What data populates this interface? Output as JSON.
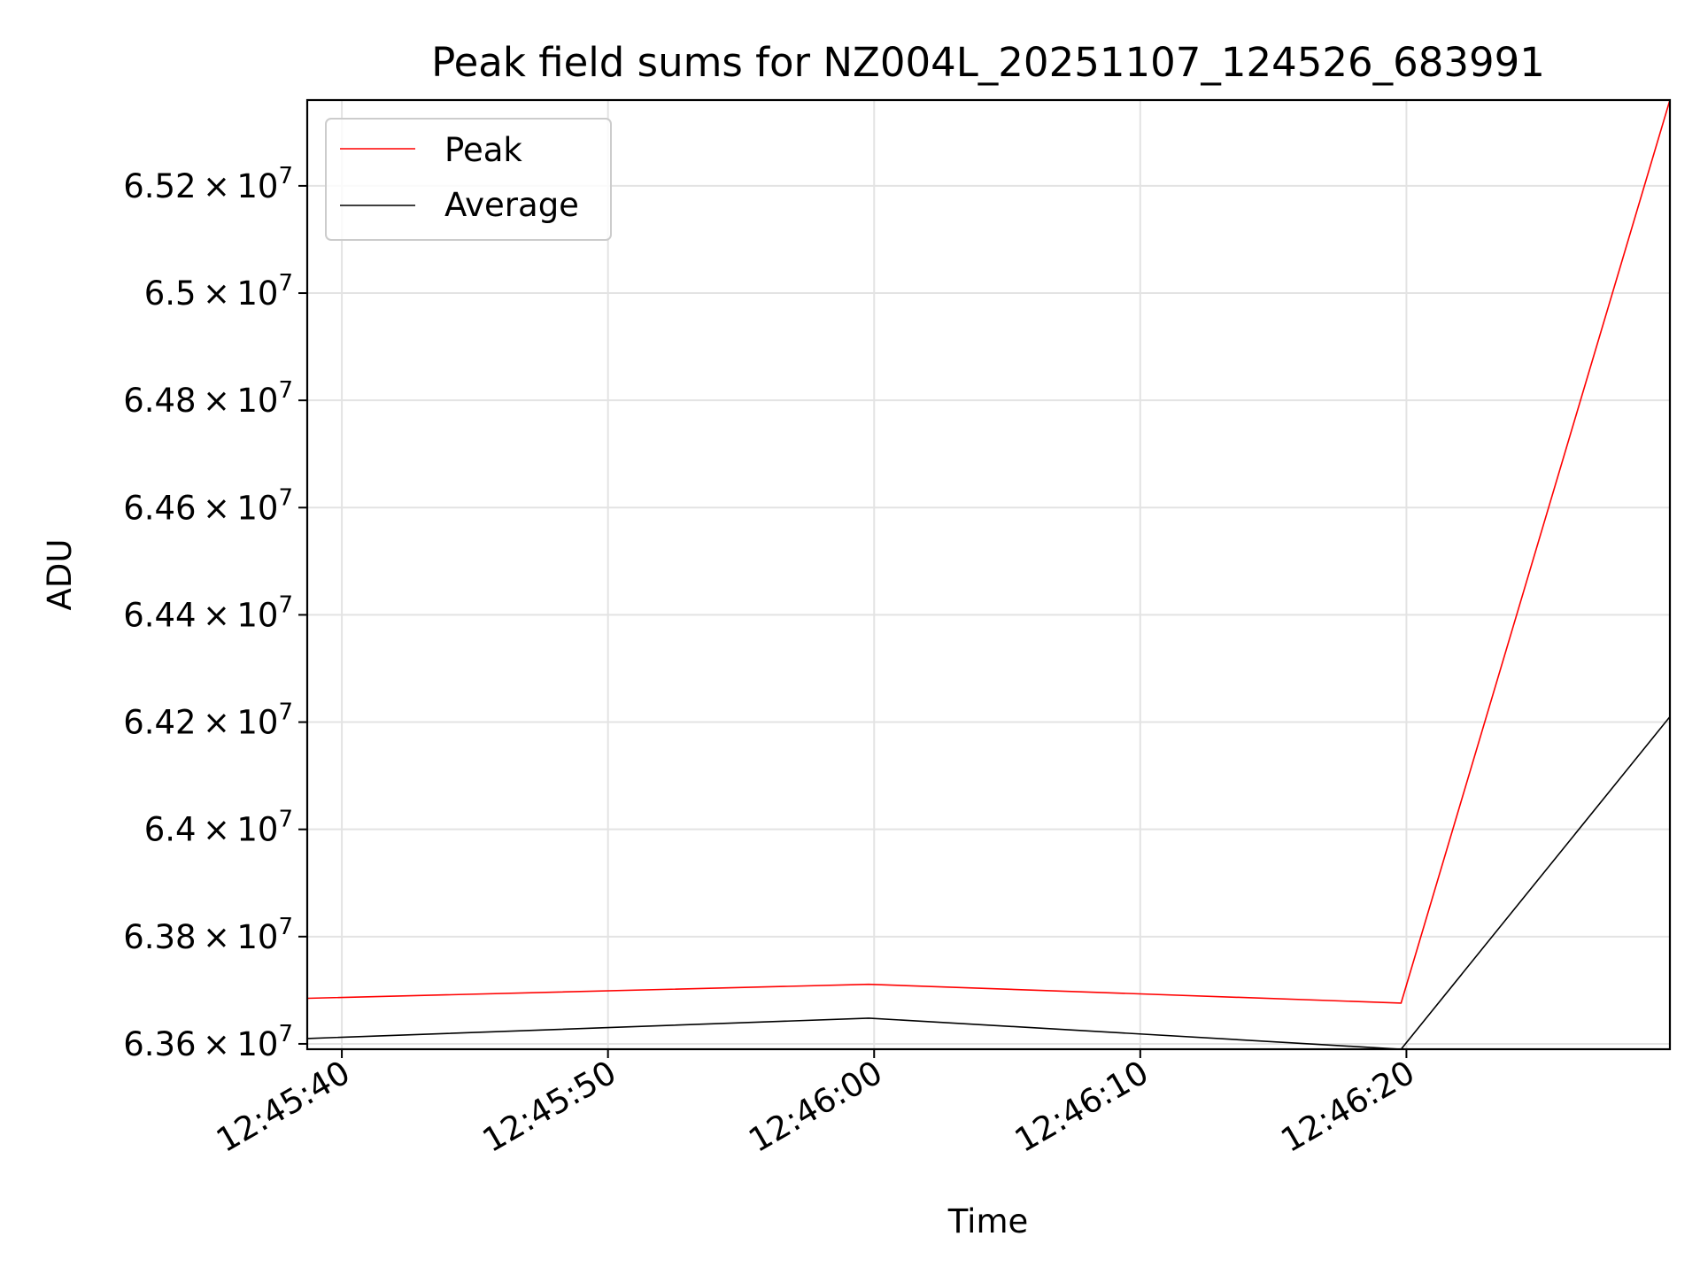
{
  "chart_data": {
    "type": "line",
    "title": "Peak field sums for NZ004L_20251107_124526_683991",
    "xlabel": "Time",
    "ylabel": "ADU",
    "x_ticks": [
      "12:45:40",
      "12:45:50",
      "12:46:00",
      "12:46:10",
      "12:46:20"
    ],
    "x_tick_seconds": [
      0,
      10,
      20,
      30,
      40
    ],
    "x_range_seconds": [
      -1.3,
      49.9
    ],
    "y_ticks": [
      {
        "value": 63600000,
        "mantissa": "6.36",
        "times": "×",
        "base": "10",
        "exp": "7"
      },
      {
        "value": 63800000,
        "mantissa": "6.38",
        "times": "×",
        "base": "10",
        "exp": "7"
      },
      {
        "value": 64000000,
        "mantissa": "6.4",
        "times": "×",
        "base": "10",
        "exp": "7"
      },
      {
        "value": 64200000,
        "mantissa": "6.42",
        "times": "×",
        "base": "10",
        "exp": "7"
      },
      {
        "value": 64400000,
        "mantissa": "6.44",
        "times": "×",
        "base": "10",
        "exp": "7"
      },
      {
        "value": 64600000,
        "mantissa": "6.46",
        "times": "×",
        "base": "10",
        "exp": "7"
      },
      {
        "value": 64800000,
        "mantissa": "6.48",
        "times": "×",
        "base": "10",
        "exp": "7"
      },
      {
        "value": 65000000,
        "mantissa": "6.5",
        "times": "×",
        "base": "10",
        "exp": "7"
      },
      {
        "value": 65200000,
        "mantissa": "6.52",
        "times": "×",
        "base": "10",
        "exp": "7"
      }
    ],
    "ylim": [
      63590000,
      65360000
    ],
    "grid": true,
    "legend_position": "top-left",
    "series": [
      {
        "name": "Peak",
        "color": "#ff0000",
        "x_seconds": [
          -1.3,
          19.8,
          39.8,
          49.9
        ],
        "values": [
          63685000,
          63711000,
          63676000,
          65360000
        ]
      },
      {
        "name": "Average",
        "color": "#000000",
        "x_seconds": [
          -1.3,
          19.8,
          39.8,
          49.9
        ],
        "values": [
          63610000,
          63648000,
          63590000,
          64210000
        ]
      }
    ]
  }
}
